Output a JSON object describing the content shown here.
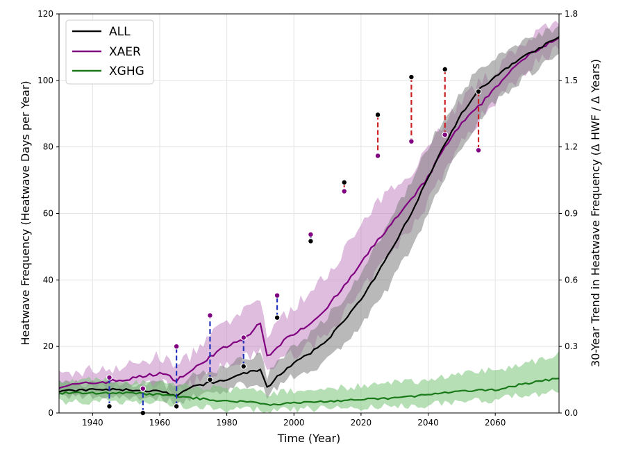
{
  "chart_data": {
    "type": "line",
    "xlabel": "Time (Year)",
    "ylabel_left": "Heatwave Frequency (Heatwave Days per Year)",
    "ylabel_right": "30-Year Trend in Heatwave Frequency (Δ HWF / Δ Years)",
    "xlim": [
      1930,
      2079
    ],
    "ylim_left": [
      0,
      120
    ],
    "ylim_right": [
      0,
      1.8
    ],
    "x_ticks": [
      1940,
      1960,
      1980,
      2000,
      2020,
      2040,
      2060
    ],
    "x_tick_labels": [
      "1940",
      "1960",
      "1980",
      "2000",
      "2020",
      "2040",
      "2060"
    ],
    "y_left_ticks": [
      0,
      20,
      40,
      60,
      80,
      100,
      120
    ],
    "y_left_tick_labels": [
      "0",
      "20",
      "40",
      "60",
      "80",
      "100",
      "120"
    ],
    "y_right_ticks": [
      0,
      0.3,
      0.6,
      0.9,
      1.2,
      1.5,
      1.8
    ],
    "y_right_tick_labels": [
      "0.0",
      "0.3",
      "0.6",
      "0.9",
      "1.2",
      "1.5",
      "1.8"
    ],
    "grid": true,
    "legend_position": "top-left",
    "series": [
      {
        "name": "ALL",
        "color": "#000000",
        "band_color": "#808080",
        "x": [
          1930,
          1940,
          1950,
          1960,
          1965,
          1970,
          1975,
          1980,
          1985,
          1990,
          1992,
          1995,
          2000,
          2005,
          2010,
          2015,
          2020,
          2025,
          2030,
          2035,
          2040,
          2045,
          2050,
          2055,
          2060,
          2065,
          2070,
          2079
        ],
        "mean": [
          6.5,
          7,
          7,
          6.5,
          5,
          8,
          9,
          10,
          12,
          13,
          7.5,
          11,
          15,
          18,
          22,
          28,
          34,
          42,
          51,
          60,
          71,
          81,
          90,
          97,
          101,
          105,
          108,
          113
        ],
        "lower": [
          4.5,
          5,
          5,
          4.5,
          3,
          5,
          6,
          7,
          8.5,
          9,
          5,
          8,
          11,
          13,
          16,
          21,
          26,
          33,
          41,
          50,
          60,
          71,
          80,
          88,
          94,
          98,
          102,
          108
        ],
        "upper": [
          9,
          9,
          9,
          9,
          7.5,
          11,
          12.5,
          14,
          16.5,
          17.5,
          11,
          15,
          20,
          24,
          29,
          35,
          42,
          51,
          60,
          70,
          80,
          89,
          97,
          103,
          106,
          110,
          113,
          116
        ]
      },
      {
        "name": "XAER",
        "color": "#800080",
        "band_color": "#b86cb8",
        "x": [
          1930,
          1940,
          1950,
          1960,
          1965,
          1970,
          1975,
          1980,
          1985,
          1990,
          1992,
          1995,
          2000,
          2005,
          2010,
          2015,
          2020,
          2025,
          2030,
          2035,
          2040,
          2045,
          2050,
          2055,
          2060,
          2065,
          2070,
          2079
        ],
        "mean": [
          8,
          9,
          10,
          12,
          10,
          13,
          17,
          20,
          22,
          27,
          17,
          20,
          24,
          27,
          32,
          38,
          45,
          52,
          58,
          64,
          71,
          80,
          87,
          92,
          98,
          103,
          108,
          113
        ],
        "lower": [
          6,
          7,
          7.5,
          9,
          7,
          9,
          12,
          14,
          16,
          19,
          12,
          15,
          18,
          20,
          24,
          30,
          36,
          43,
          49,
          56,
          64,
          73,
          81,
          88,
          94,
          99,
          104,
          110
        ],
        "upper": [
          11,
          13,
          14,
          17,
          14,
          18,
          23,
          27,
          30,
          35,
          23,
          27,
          32,
          36,
          42,
          49,
          56,
          63,
          68,
          73,
          80,
          88,
          94,
          99,
          103,
          108,
          113,
          117
        ]
      },
      {
        "name": "XGHG",
        "color": "#1a7a1a",
        "band_color": "#7ac47a",
        "x": [
          1930,
          1940,
          1950,
          1960,
          1965,
          1970,
          1975,
          1980,
          1985,
          1990,
          1992,
          2000,
          2010,
          2020,
          2030,
          2040,
          2050,
          2060,
          2070,
          2079
        ],
        "mean": [
          6,
          6,
          6,
          5.5,
          5,
          4.5,
          4,
          3.5,
          3.5,
          3,
          2.5,
          3,
          3.5,
          4,
          4.5,
          5.5,
          6.5,
          7,
          9,
          10.5
        ],
        "lower": [
          3.5,
          3.5,
          3.5,
          3,
          2.5,
          2,
          1.5,
          1,
          1,
          1,
          0.5,
          1,
          1.5,
          1.5,
          2,
          2.5,
          3.5,
          4,
          5.5,
          6.5
        ],
        "upper": [
          10,
          10,
          9.5,
          9,
          8.5,
          8,
          7.5,
          7,
          7,
          6.5,
          6,
          6.5,
          7.5,
          8,
          9,
          10,
          12,
          13,
          15,
          18
        ]
      }
    ],
    "trend_markers": [
      {
        "year": 1945,
        "all": 0.03,
        "xaer": 0.16
      },
      {
        "year": 1955,
        "all": 0.0,
        "xaer": 0.11
      },
      {
        "year": 1965,
        "all": 0.03,
        "xaer": 0.3
      },
      {
        "year": 1975,
        "all": 0.15,
        "xaer": 0.44
      },
      {
        "year": 1985,
        "all": 0.21,
        "xaer": 0.34
      },
      {
        "year": 1995,
        "all": 0.43,
        "xaer": 0.53
      },
      {
        "year": 2005,
        "all": 0.775,
        "xaer": 0.805
      },
      {
        "year": 2015,
        "all": 1.04,
        "xaer": 1.0
      },
      {
        "year": 2025,
        "all": 1.345,
        "xaer": 1.16
      },
      {
        "year": 2035,
        "all": 1.515,
        "xaer": 1.225
      },
      {
        "year": 2045,
        "all": 1.55,
        "xaer": 1.255
      },
      {
        "year": 2055,
        "all": 1.45,
        "xaer": 1.185
      }
    ]
  }
}
